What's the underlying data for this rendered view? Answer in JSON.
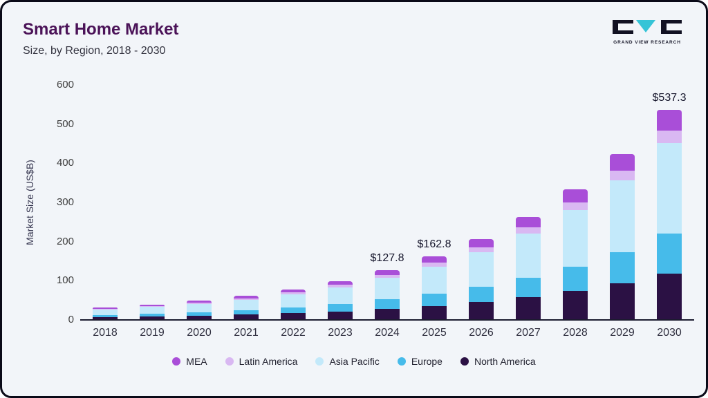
{
  "page": {
    "title": "Smart Home Market",
    "subtitle": "Size, by Region, 2018 - 2030"
  },
  "logo": {
    "text": "GRAND VIEW RESEARCH",
    "accent_color": "#35c4d7",
    "dark_color": "#111122"
  },
  "chart_data": {
    "type": "bar",
    "stacked": true,
    "title": "Smart Home Market Size, by Region, 2018 - 2030",
    "xlabel": "",
    "ylabel": "Market Size (US$B)",
    "ylim": [
      0,
      600
    ],
    "yticks": [
      0,
      100,
      200,
      300,
      400,
      500,
      600
    ],
    "grid": false,
    "legend_position": "bottom",
    "categories": [
      "2018",
      "2019",
      "2020",
      "2021",
      "2022",
      "2023",
      "2024",
      "2025",
      "2026",
      "2027",
      "2028",
      "2029",
      "2030"
    ],
    "series": [
      {
        "name": "North America",
        "color": "#2b1144",
        "values": [
          7.0,
          8.7,
          10.8,
          13.4,
          17.2,
          21.9,
          28.0,
          35.8,
          45.5,
          57.8,
          73.4,
          93.2,
          118.2
        ]
      },
      {
        "name": "Europe",
        "color": "#46bbea",
        "values": [
          6.1,
          7.5,
          9.3,
          11.6,
          14.8,
          18.9,
          24.3,
          30.9,
          39.3,
          49.9,
          63.4,
          80.5,
          102.1
        ]
      },
      {
        "name": "Asia Pacific",
        "color": "#c3e9fa",
        "values": [
          13.8,
          17.0,
          21.1,
          26.2,
          33.5,
          42.8,
          55.0,
          70.0,
          88.9,
          112.9,
          143.4,
          182.1,
          231.0
        ]
      },
      {
        "name": "Latin America",
        "color": "#d9b8f2",
        "values": [
          1.9,
          2.4,
          2.9,
          3.7,
          4.7,
          6.0,
          7.7,
          9.8,
          12.4,
          15.8,
          20.0,
          25.4,
          32.2
        ]
      },
      {
        "name": "MEA",
        "color": "#a94ed8",
        "values": [
          3.2,
          4.0,
          4.9,
          6.1,
          7.8,
          10.0,
          12.8,
          16.3,
          20.7,
          26.3,
          33.4,
          42.4,
          53.8
        ]
      }
    ],
    "annotations": [
      {
        "category": "2024",
        "label": "$127.8"
      },
      {
        "category": "2025",
        "label": "$162.8"
      },
      {
        "category": "2030",
        "label": "$537.3"
      }
    ],
    "legend": [
      "MEA",
      "Latin America",
      "Asia Pacific",
      "Europe",
      "North America"
    ]
  }
}
